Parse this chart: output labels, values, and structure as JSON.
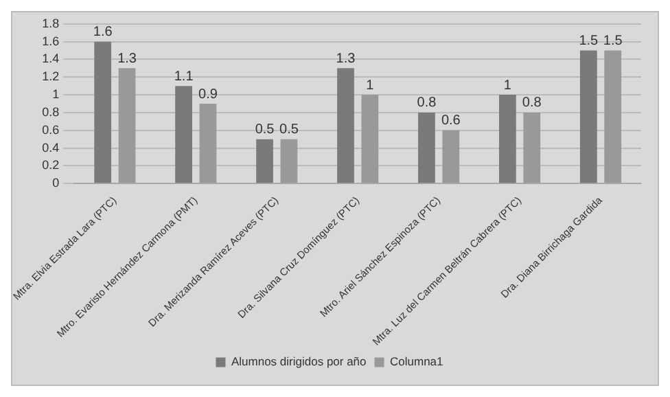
{
  "chart_data": {
    "type": "bar",
    "categories": [
      "Mtra. Elvia Estrada Lara (PTC)",
      "Mtro. Evaristo Hernández Carmona (PMT)",
      "Dra. Merizanda Ramírez Aceves (PTC)",
      "Dra. Silvana Cruz Domínguez (PTC)",
      "Mtro. Ariel Sánchez Espinoza (PTC)",
      "Mtra. Luz del Carmen Beltrán Cabrera (PTC)",
      "Dra. Diana Birrichaga Gardida"
    ],
    "series": [
      {
        "name": "Alumnos dirigidos por año",
        "color": "#7a7a7a",
        "values": [
          1.6,
          1.1,
          0.5,
          1.3,
          0.8,
          1,
          1.5
        ]
      },
      {
        "name": "Columna1",
        "color": "#999999",
        "values": [
          1.3,
          0.9,
          0.5,
          1,
          0.6,
          0.8,
          1.5
        ]
      }
    ],
    "ylim": [
      0,
      1.8
    ],
    "yticks": [
      0,
      0.2,
      0.4,
      0.6,
      0.8,
      1,
      1.2,
      1.4,
      1.6,
      1.8
    ],
    "grid": "y",
    "legend": "bottom",
    "data_labels": true
  }
}
